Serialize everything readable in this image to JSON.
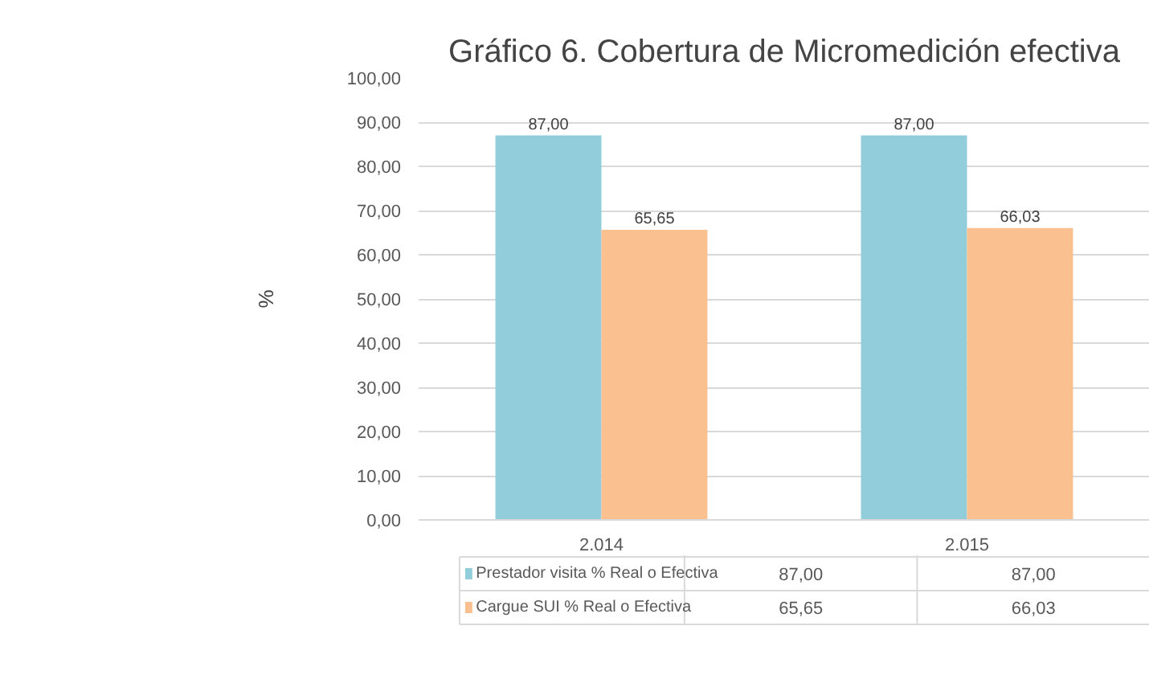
{
  "chart_data": {
    "type": "bar",
    "title": "Gráfico 6. Cobertura de Micromedición efectiva",
    "ylabel": "%",
    "categories": [
      "2.014",
      "2.015"
    ],
    "series": [
      {
        "name": "Prestador visita % Real o Efectiva",
        "color": "#92cddc",
        "values": [
          87.0,
          87.0
        ],
        "value_labels": [
          "87,00",
          "87,00"
        ]
      },
      {
        "name": "Cargue SUI % Real o Efectiva",
        "color": "#fac090",
        "values": [
          65.65,
          66.03
        ],
        "value_labels": [
          "65,65",
          "66,03"
        ]
      }
    ],
    "ylim": [
      0,
      100
    ],
    "yticks": [
      {
        "value": 0,
        "label": "0,00"
      },
      {
        "value": 10,
        "label": "10,00"
      },
      {
        "value": 20,
        "label": "20,00"
      },
      {
        "value": 30,
        "label": "30,00"
      },
      {
        "value": 40,
        "label": "40,00"
      },
      {
        "value": 50,
        "label": "50,00"
      },
      {
        "value": 60,
        "label": "60,00"
      },
      {
        "value": 70,
        "label": "70,00"
      },
      {
        "value": 80,
        "label": "80,00"
      },
      {
        "value": 90,
        "label": "90,00"
      },
      {
        "value": 100,
        "label": "100,00"
      }
    ],
    "grid": "y",
    "legend": "bottom"
  }
}
